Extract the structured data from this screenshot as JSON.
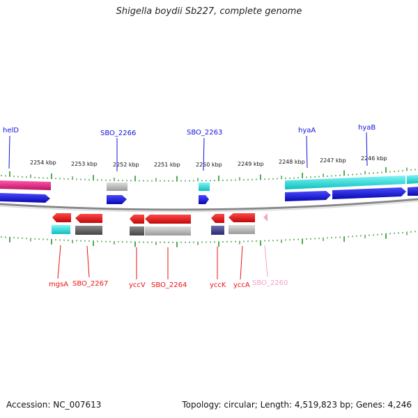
{
  "title": "Shigella boydii Sb227, complete genome",
  "footer": {
    "accession": "Accession: NC_007613",
    "topology": "Topology: circular; Length: 4,519,823 bp; Genes: 4,246"
  },
  "colors": {
    "gene_forward": "#1111dd",
    "gene_reverse": "#ee1111",
    "pseudo_label": "#f0a0c8",
    "tick": "#1a8a1a",
    "backbone": "#888888"
  },
  "scale_labels": [
    "2254 kbp",
    "2253 kbp",
    "2252 kbp",
    "2251 kbp",
    "2250 kbp",
    "2249 kbp",
    "2248 kbp",
    "2247 kbp",
    "2246 kbp"
  ],
  "genes_top": [
    {
      "label": "helD",
      "color": "#1111dd"
    },
    {
      "label": "SBO_2266",
      "color": "#1111dd"
    },
    {
      "label": "SBO_2263",
      "color": "#1111dd"
    },
    {
      "label": "hyaA",
      "color": "#1111dd"
    },
    {
      "label": "hyaB",
      "color": "#1111dd"
    }
  ],
  "genes_bottom": [
    {
      "label": "mgsA",
      "color": "#ee1111"
    },
    {
      "label": "SBO_2267",
      "color": "#ee1111"
    },
    {
      "label": "yccV",
      "color": "#ee1111"
    },
    {
      "label": "SBO_2264",
      "color": "#ee1111"
    },
    {
      "label": "yccK",
      "color": "#ee1111"
    },
    {
      "label": "yccA",
      "color": "#ee1111"
    },
    {
      "label": "SBO_2260",
      "color": "#f0a0c8"
    }
  ]
}
